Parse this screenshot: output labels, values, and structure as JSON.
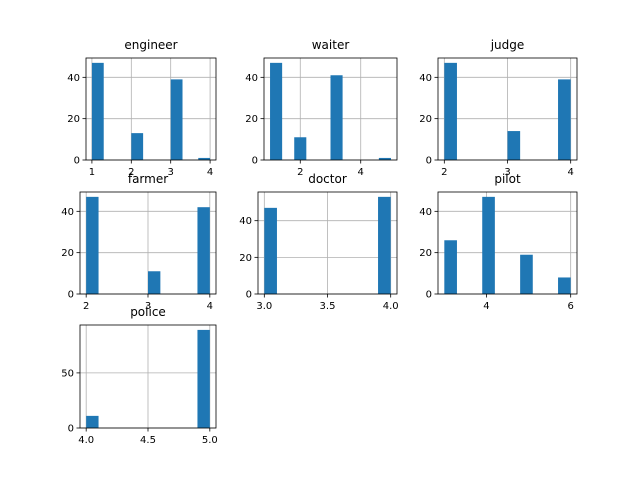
{
  "chart_data": [
    {
      "type": "bar",
      "title": "engineer",
      "bar_color": "#1f77b4",
      "grid": true,
      "xlim": [
        0.85,
        4.15
      ],
      "ylim": [
        0,
        49.35
      ],
      "xticks": [
        1,
        2,
        3,
        4
      ],
      "xtick_labels": [
        "1",
        "2",
        "3",
        "4"
      ],
      "yticks": [
        0,
        20,
        40
      ],
      "ytick_labels": [
        "0",
        "20",
        "40"
      ],
      "bins": [
        [
          1.0,
          1.3
        ],
        [
          2.0,
          2.3
        ],
        [
          3.0,
          3.3
        ],
        [
          3.7,
          4.0
        ]
      ],
      "values": [
        47,
        13,
        39,
        1
      ]
    },
    {
      "type": "bar",
      "title": "waiter",
      "bar_color": "#1f77b4",
      "grid": true,
      "xlim": [
        0.8,
        5.2
      ],
      "ylim": [
        0,
        49.35
      ],
      "xticks": [
        2,
        4
      ],
      "xtick_labels": [
        "2",
        "4"
      ],
      "yticks": [
        0,
        20,
        40
      ],
      "ytick_labels": [
        "0",
        "20",
        "40"
      ],
      "bins": [
        [
          1.0,
          1.4
        ],
        [
          1.8,
          2.2
        ],
        [
          3.0,
          3.4
        ],
        [
          4.6,
          5.0
        ]
      ],
      "values": [
        47,
        11,
        41,
        1
      ]
    },
    {
      "type": "bar",
      "title": "judge",
      "bar_color": "#1f77b4",
      "grid": true,
      "xlim": [
        1.9,
        4.1
      ],
      "ylim": [
        0,
        49.35
      ],
      "xticks": [
        2,
        3,
        4
      ],
      "xtick_labels": [
        "2",
        "3",
        "4"
      ],
      "yticks": [
        0,
        20,
        40
      ],
      "ytick_labels": [
        "0",
        "20",
        "40"
      ],
      "bins": [
        [
          2.0,
          2.2
        ],
        [
          3.0,
          3.2
        ],
        [
          3.8,
          4.0
        ]
      ],
      "values": [
        47,
        14,
        39
      ]
    },
    {
      "type": "bar",
      "title": "farmer",
      "bar_color": "#1f77b4",
      "grid": true,
      "xlim": [
        1.9,
        4.1
      ],
      "ylim": [
        0,
        49.35
      ],
      "xticks": [
        2,
        3,
        4
      ],
      "xtick_labels": [
        "2",
        "3",
        "4"
      ],
      "yticks": [
        0,
        20,
        40
      ],
      "ytick_labels": [
        "0",
        "20",
        "40"
      ],
      "bins": [
        [
          2.0,
          2.2
        ],
        [
          3.0,
          3.2
        ],
        [
          3.8,
          4.0
        ]
      ],
      "values": [
        47,
        11,
        42
      ]
    },
    {
      "type": "bar",
      "title": "doctor",
      "bar_color": "#1f77b4",
      "grid": true,
      "xlim": [
        2.95,
        4.05
      ],
      "ylim": [
        0,
        55.65
      ],
      "xticks": [
        3.0,
        3.5,
        4.0
      ],
      "xtick_labels": [
        "3.0",
        "3.5",
        "4.0"
      ],
      "yticks": [
        0,
        20,
        40
      ],
      "ytick_labels": [
        "0",
        "20",
        "40"
      ],
      "bins": [
        [
          3.0,
          3.1
        ],
        [
          3.9,
          4.0
        ]
      ],
      "values": [
        47,
        53
      ]
    },
    {
      "type": "bar",
      "title": "pilot",
      "bar_color": "#1f77b4",
      "grid": true,
      "xlim": [
        2.85,
        6.15
      ],
      "ylim": [
        0,
        49.35
      ],
      "xticks": [
        4,
        6
      ],
      "xtick_labels": [
        "4",
        "6"
      ],
      "yticks": [
        0,
        20,
        40
      ],
      "ytick_labels": [
        "0",
        "20",
        "40"
      ],
      "bins": [
        [
          3.0,
          3.3
        ],
        [
          3.9,
          4.2
        ],
        [
          4.8,
          5.1
        ],
        [
          5.7,
          6.0
        ]
      ],
      "values": [
        26,
        47,
        19,
        8
      ]
    },
    {
      "type": "bar",
      "title": "police",
      "bar_color": "#1f77b4",
      "grid": true,
      "xlim": [
        3.95,
        5.05
      ],
      "ylim": [
        0,
        93.45
      ],
      "xticks": [
        4.0,
        4.5,
        5.0
      ],
      "xtick_labels": [
        "4.0",
        "4.5",
        "5.0"
      ],
      "yticks": [
        0,
        50
      ],
      "ytick_labels": [
        "0",
        "50"
      ],
      "bins": [
        [
          4.0,
          4.1
        ],
        [
          4.9,
          5.0
        ]
      ],
      "values": [
        11,
        89
      ]
    }
  ]
}
